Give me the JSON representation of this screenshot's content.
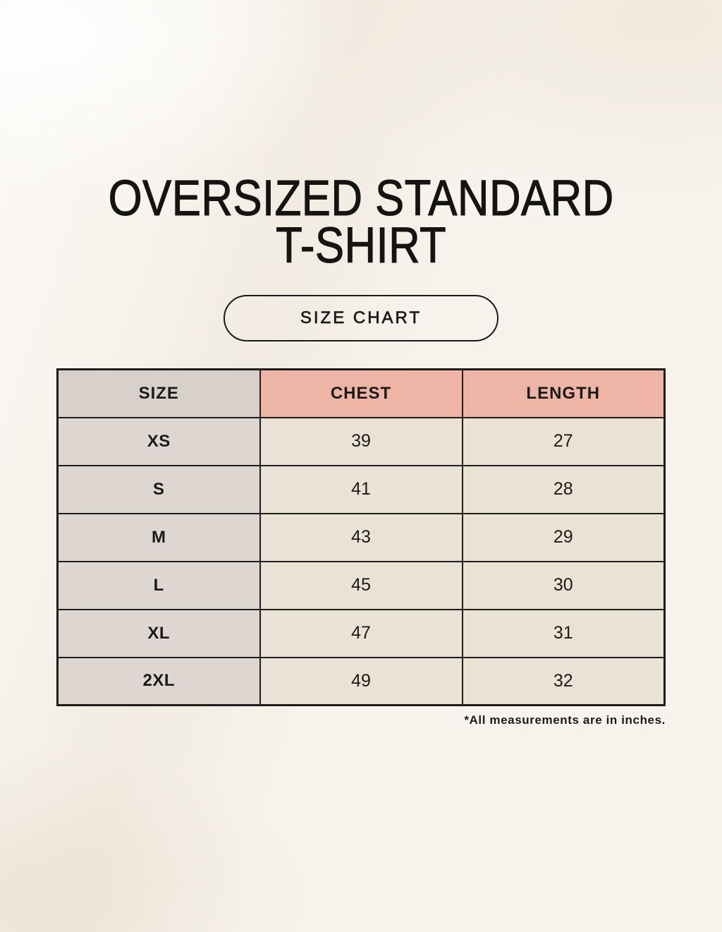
{
  "page": {
    "title_line1": "OVERSIZED STANDARD",
    "title_line2": "T-SHIRT",
    "badge_label": "SIZE CHART",
    "footnote": "*All measurements are in inches."
  },
  "table": {
    "columns": [
      "SIZE",
      "CHEST",
      "LENGTH"
    ],
    "rows": [
      {
        "size": "XS",
        "chest": "39",
        "length": "27"
      },
      {
        "size": "S",
        "chest": "41",
        "length": "28"
      },
      {
        "size": "M",
        "chest": "43",
        "length": "29"
      },
      {
        "size": "L",
        "chest": "45",
        "length": "30"
      },
      {
        "size": "XL",
        "chest": "47",
        "length": "31"
      },
      {
        "size": "2XL",
        "chest": "49",
        "length": "32"
      }
    ]
  },
  "colors": {
    "background": "#f7f3ec",
    "header_size_bg": "#d7d0cb",
    "header_measure_bg": "#eeb4a6",
    "size_column_bg": "#ddd6d1",
    "value_cell_bg": "#e9e2d5",
    "border": "#1f1d1b",
    "text": "#1c1a19"
  },
  "chart_data": {
    "type": "table",
    "title": "OVERSIZED STANDARD T-SHIRT",
    "subtitle": "SIZE CHART",
    "columns": [
      "SIZE",
      "CHEST",
      "LENGTH"
    ],
    "rows": [
      [
        "XS",
        39,
        27
      ],
      [
        "S",
        41,
        28
      ],
      [
        "M",
        43,
        29
      ],
      [
        "L",
        45,
        30
      ],
      [
        "XL",
        47,
        31
      ],
      [
        "2XL",
        49,
        32
      ]
    ],
    "units": "inches",
    "note": "*All measurements are in inches."
  }
}
